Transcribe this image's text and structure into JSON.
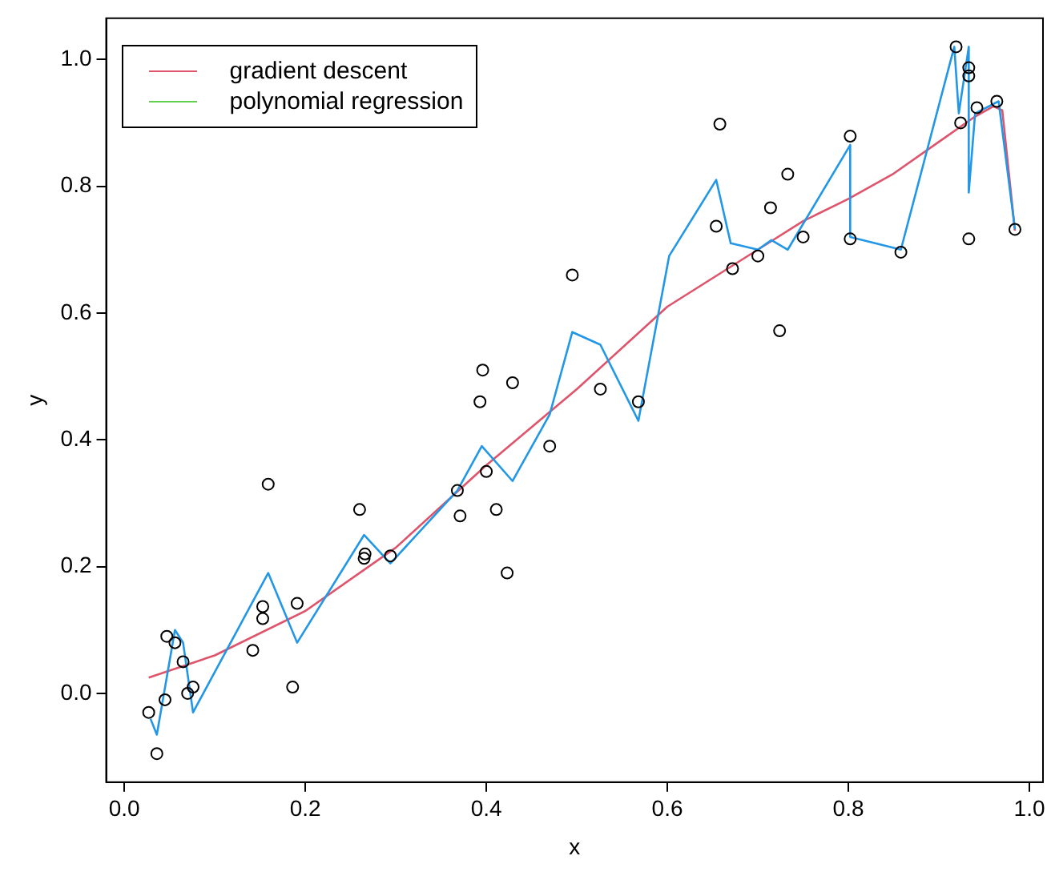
{
  "chart_data": {
    "type": "scatter",
    "xlabel": "x",
    "ylabel": "y",
    "xlim": [
      -0.02,
      1.015
    ],
    "ylim": [
      -0.14,
      1.065
    ],
    "xticks": [
      {
        "value": 0,
        "label": "0.0"
      },
      {
        "value": 0.2,
        "label": "0.2"
      },
      {
        "value": 0.4,
        "label": "0.4"
      },
      {
        "value": 0.6,
        "label": "0.6"
      },
      {
        "value": 0.8,
        "label": "0.8"
      },
      {
        "value": 1,
        "label": "1.0"
      }
    ],
    "yticks": [
      {
        "value": 0,
        "label": "0.0"
      },
      {
        "value": 0.2,
        "label": "0.2"
      },
      {
        "value": 0.4,
        "label": "0.4"
      },
      {
        "value": 0.6,
        "label": "0.6"
      },
      {
        "value": 0.8,
        "label": "0.8"
      },
      {
        "value": 1,
        "label": "1.0"
      }
    ],
    "grid": false,
    "legend": "top left",
    "series": [
      {
        "marker": "circle",
        "color": "#000000",
        "x": [
          0.027,
          0.036,
          0.045,
          0.047,
          0.056,
          0.065,
          0.07,
          0.076,
          0.142,
          0.153,
          0.153,
          0.159,
          0.186,
          0.191,
          0.26,
          0.265,
          0.266,
          0.294,
          0.368,
          0.371,
          0.393,
          0.396,
          0.4,
          0.411,
          0.423,
          0.429,
          0.47,
          0.495,
          0.526,
          0.568,
          0.654,
          0.658,
          0.672,
          0.7,
          0.714,
          0.724,
          0.733,
          0.75,
          0.802,
          0.802,
          0.858,
          0.919,
          0.924,
          0.933,
          0.933,
          0.933,
          0.942,
          0.964,
          0.984
        ],
        "values": [
          -0.03,
          -0.095,
          -0.01,
          0.09,
          0.08,
          0.05,
          0.0,
          0.01,
          0.068,
          0.137,
          0.118,
          0.33,
          0.01,
          0.142,
          0.29,
          0.213,
          0.22,
          0.217,
          0.32,
          0.28,
          0.46,
          0.51,
          0.35,
          0.29,
          0.19,
          0.49,
          0.39,
          0.66,
          0.48,
          0.46,
          0.737,
          0.898,
          0.67,
          0.69,
          0.766,
          0.572,
          0.819,
          0.72,
          0.879,
          0.717,
          0.696,
          1.02,
          0.9,
          0.987,
          0.974,
          0.717,
          0.924,
          0.934,
          0.732
        ]
      },
      {
        "type": "line",
        "marker": "none",
        "color": "#2297e6",
        "x": [
          0.029,
          0.036,
          0.056,
          0.065,
          0.076,
          0.159,
          0.191,
          0.265,
          0.294,
          0.368,
          0.395,
          0.429,
          0.47,
          0.495,
          0.526,
          0.568,
          0.602,
          0.654,
          0.67,
          0.7,
          0.715,
          0.733,
          0.802,
          0.802,
          0.858,
          0.917,
          0.922,
          0.933,
          0.933,
          0.94,
          0.966,
          0.984
        ],
        "values": [
          -0.04,
          -0.065,
          0.1,
          0.08,
          -0.03,
          0.19,
          0.08,
          0.25,
          0.205,
          0.32,
          0.39,
          0.335,
          0.44,
          0.57,
          0.55,
          0.43,
          0.69,
          0.81,
          0.71,
          0.7,
          0.715,
          0.7,
          0.865,
          0.72,
          0.7,
          1.02,
          0.915,
          1.02,
          0.79,
          0.915,
          0.934,
          0.732
        ]
      },
      {
        "type": "line",
        "marker": "none",
        "name": "gradient descent",
        "color": "#df536b",
        "x": [
          0.027,
          0.1,
          0.2,
          0.3,
          0.4,
          0.5,
          0.6,
          0.7,
          0.75,
          0.8,
          0.85,
          0.9,
          0.94,
          0.96,
          0.97,
          0.984
        ],
        "values": [
          0.025,
          0.06,
          0.13,
          0.23,
          0.36,
          0.48,
          0.61,
          0.7,
          0.745,
          0.78,
          0.82,
          0.87,
          0.91,
          0.926,
          0.92,
          0.73
        ]
      },
      {
        "type": "line",
        "marker": "none",
        "name": "polynomial regression",
        "color": "#61d04f"
      }
    ]
  }
}
